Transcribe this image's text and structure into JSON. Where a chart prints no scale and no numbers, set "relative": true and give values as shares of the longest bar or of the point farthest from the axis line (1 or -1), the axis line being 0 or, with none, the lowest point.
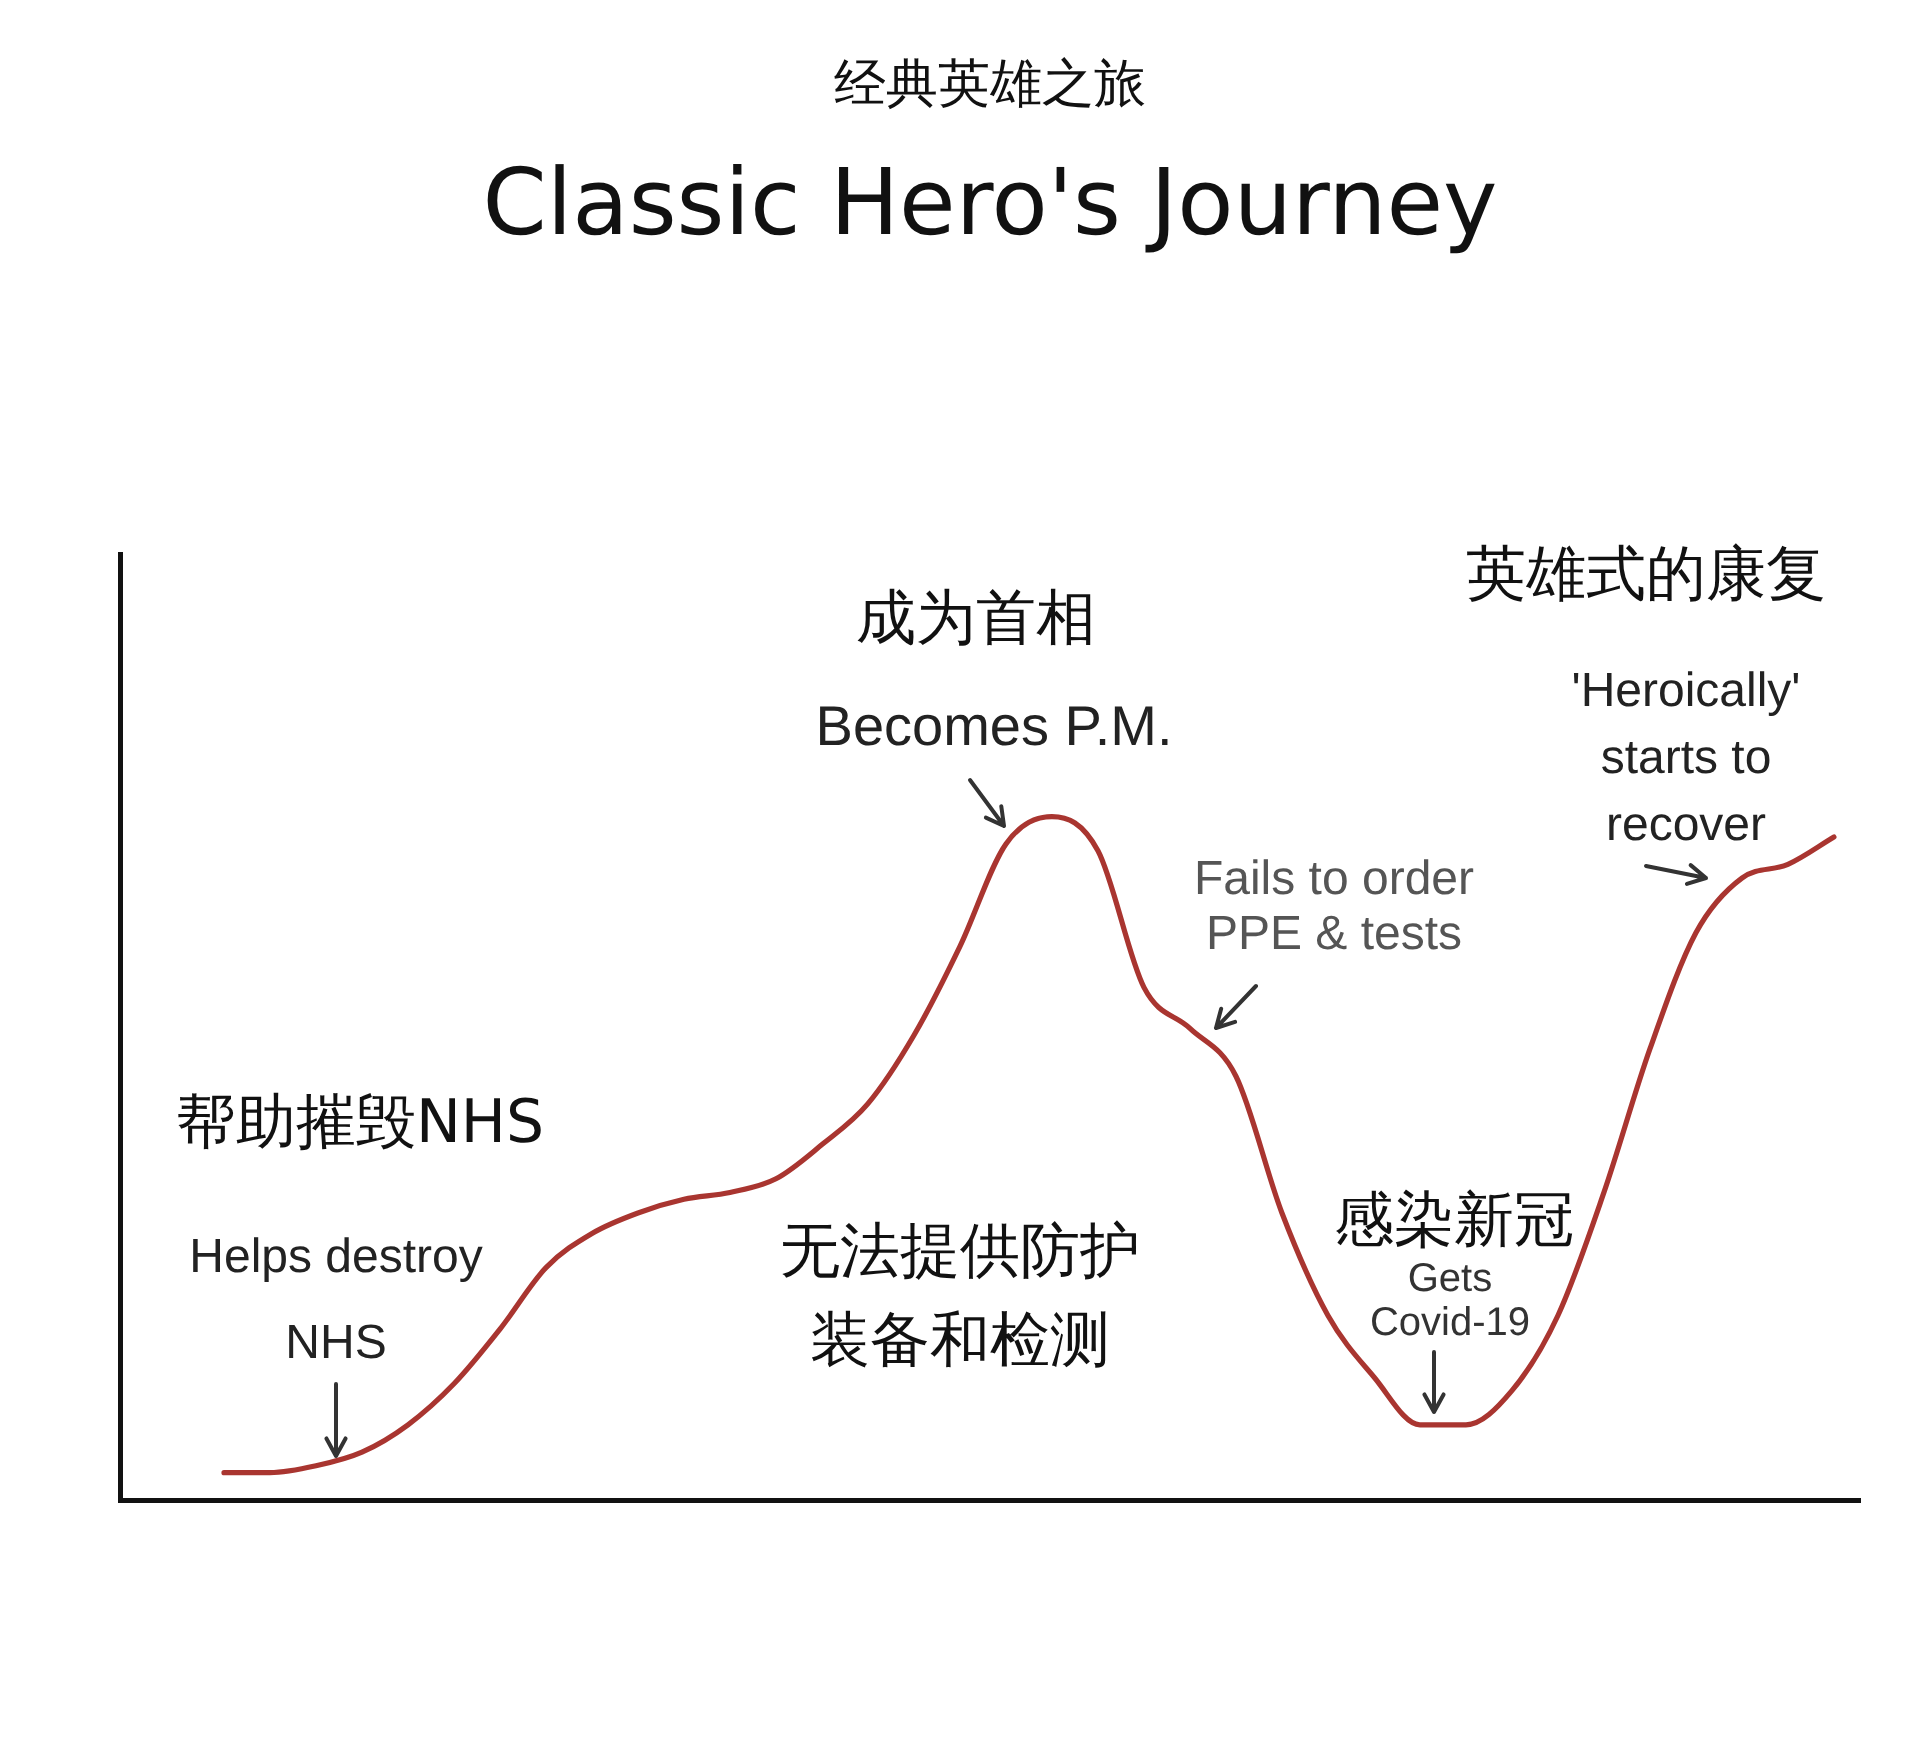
{
  "chart_data": {
    "type": "line",
    "title": "经典英雄之旅",
    "subtitle": "Classic Hero's Journey",
    "categories": [
      null,
      null,
      null,
      null,
      null,
      null,
      null,
      null,
      null,
      null,
      null,
      null,
      null,
      null,
      null,
      null,
      null,
      null,
      null,
      null,
      null,
      null,
      null,
      null,
      null,
      null,
      null,
      null,
      null,
      null,
      null,
      null,
      null,
      null,
      null,
      null
    ],
    "values": [
      0.04,
      0.04,
      0.05,
      0.07,
      0.11,
      0.17,
      0.25,
      0.34,
      0.39,
      0.42,
      0.44,
      0.45,
      0.47,
      0.52,
      0.58,
      0.68,
      0.81,
      0.96,
      1,
      0.95,
      0.75,
      0.69,
      0.62,
      0.42,
      0.27,
      0.18,
      0.11,
      0.11,
      0.16,
      0.27,
      0.45,
      0.66,
      0.83,
      0.91,
      0.93,
      0.97
    ],
    "color": "#a93530",
    "relative": true,
    "annotations": [
      "帮助摧毁NHS",
      "Helps destroy NHS",
      "成为首相",
      "Becomes P.M.",
      "无法提供防护装备和检测",
      "Fails to order PPE & tests",
      "感染新冠",
      "Gets Covid-19",
      "英雄式的康复",
      "'Heroically' starts to recover"
    ]
  }
}
